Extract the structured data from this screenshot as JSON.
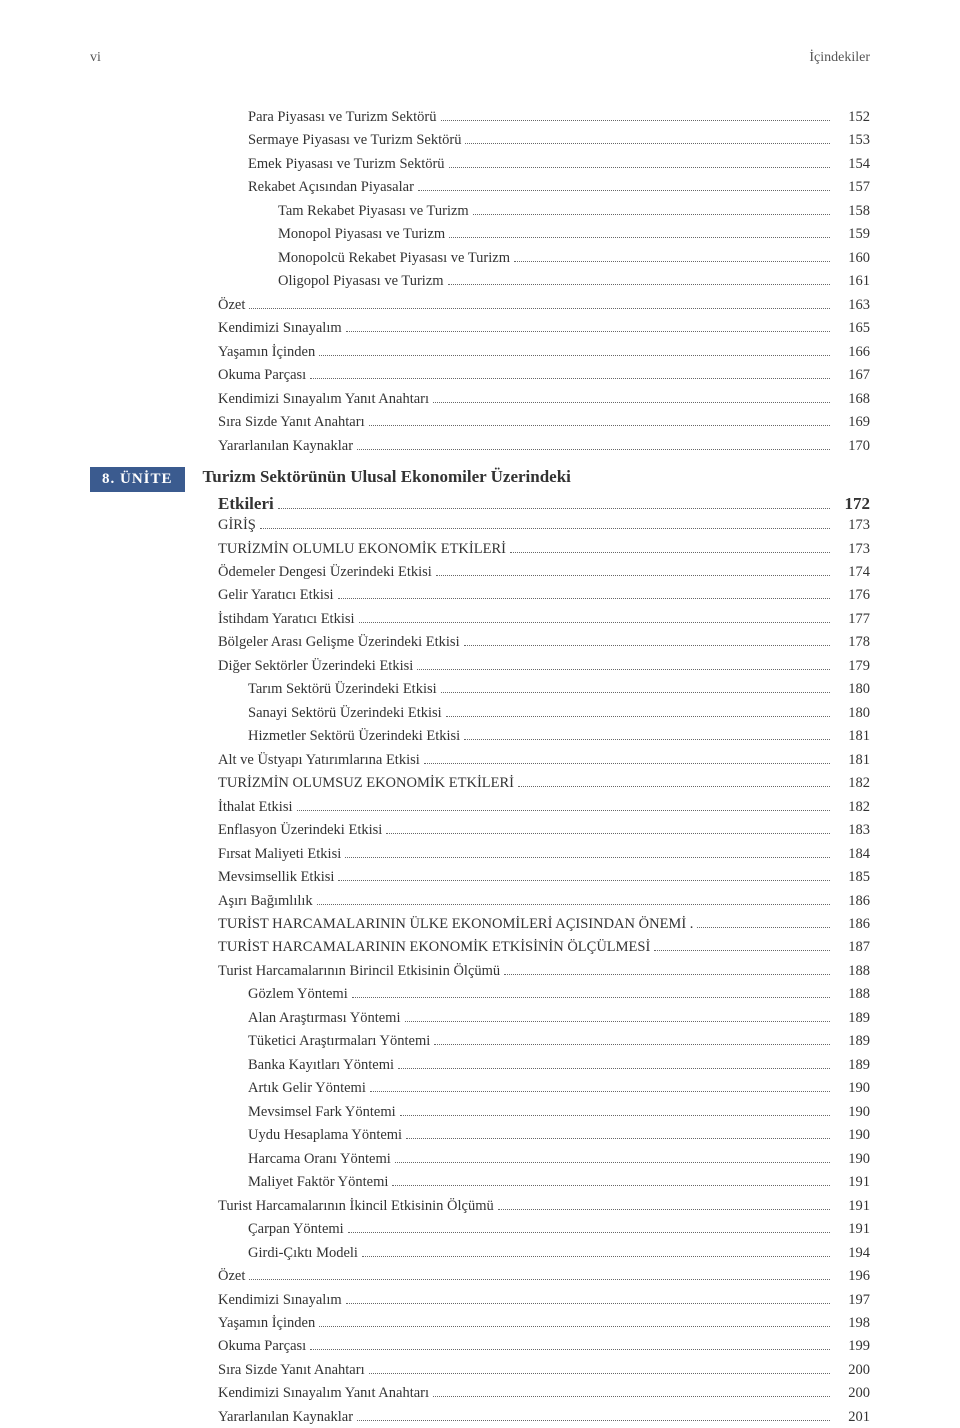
{
  "pageNumber": "vi",
  "headerTitle": "İçindekiler",
  "unit": {
    "badge": "8. ÜNİTE",
    "titleLine1": "Turizm Sektörünün Ulusal Ekonomiler Üzerindeki",
    "titleLine2": "Etkileri",
    "page": "172"
  },
  "preEntries": [
    {
      "label": "Para Piyasası ve Turizm Sektörü",
      "page": "152",
      "level": 1
    },
    {
      "label": "Sermaye Piyasası ve Turizm Sektörü",
      "page": "153",
      "level": 1
    },
    {
      "label": "Emek Piyasası ve Turizm Sektörü",
      "page": "154",
      "level": 1
    },
    {
      "label": "Rekabet Açısından Piyasalar",
      "page": "157",
      "level": 1
    },
    {
      "label": "Tam Rekabet Piyasası ve Turizm",
      "page": "158",
      "level": 2
    },
    {
      "label": "Monopol Piyasası ve Turizm",
      "page": "159",
      "level": 2
    },
    {
      "label": "Monopolcü Rekabet Piyasası ve Turizm",
      "page": "160",
      "level": 2
    },
    {
      "label": "Oligopol Piyasası ve Turizm",
      "page": "161",
      "level": 2
    },
    {
      "label": "Özet",
      "page": "163",
      "level": 0
    },
    {
      "label": "Kendimizi Sınayalım",
      "page": "165",
      "level": 0
    },
    {
      "label": "Yaşamın İçinden",
      "page": "166",
      "level": 0
    },
    {
      "label": "Okuma Parçası",
      "page": "167",
      "level": 0
    },
    {
      "label": "Kendimizi Sınayalım Yanıt Anahtarı",
      "page": "168",
      "level": 0
    },
    {
      "label": "Sıra Sizde Yanıt Anahtarı",
      "page": "169",
      "level": 0
    },
    {
      "label": "Yararlanılan Kaynaklar",
      "page": "170",
      "level": 0
    }
  ],
  "postEntries": [
    {
      "label": "GİRİŞ",
      "page": "173",
      "level": 0
    },
    {
      "label": "TURİZMİN OLUMLU EKONOMİK ETKİLERİ",
      "page": "173",
      "level": 0
    },
    {
      "label": "Ödemeler Dengesi Üzerindeki Etkisi",
      "page": "174",
      "level": 0
    },
    {
      "label": "Gelir Yaratıcı Etkisi",
      "page": "176",
      "level": 0
    },
    {
      "label": "İstihdam Yaratıcı Etkisi",
      "page": "177",
      "level": 0
    },
    {
      "label": "Bölgeler Arası Gelişme Üzerindeki Etkisi",
      "page": "178",
      "level": 0
    },
    {
      "label": "Diğer Sektörler Üzerindeki Etkisi",
      "page": "179",
      "level": 0
    },
    {
      "label": "Tarım Sektörü Üzerindeki Etkisi",
      "page": "180",
      "level": 1
    },
    {
      "label": "Sanayi Sektörü Üzerindeki Etkisi",
      "page": "180",
      "level": 1
    },
    {
      "label": "Hizmetler Sektörü Üzerindeki Etkisi",
      "page": "181",
      "level": 1
    },
    {
      "label": "Alt ve Üstyapı Yatırımlarına Etkisi",
      "page": "181",
      "level": 0
    },
    {
      "label": "TURİZMİN OLUMSUZ EKONOMİK ETKİLERİ",
      "page": "182",
      "level": 0
    },
    {
      "label": "İthalat Etkisi",
      "page": "182",
      "level": 0
    },
    {
      "label": "Enflasyon Üzerindeki Etkisi",
      "page": "183",
      "level": 0
    },
    {
      "label": "Fırsat Maliyeti Etkisi",
      "page": "184",
      "level": 0
    },
    {
      "label": "Mevsimsellik Etkisi",
      "page": "185",
      "level": 0
    },
    {
      "label": "Aşırı Bağımlılık",
      "page": "186",
      "level": 0
    },
    {
      "label": "TURİST HARCAMALARININ ÜLKE EKONOMİLERİ AÇISINDAN ÖNEMİ .",
      "page": "186",
      "level": 0
    },
    {
      "label": "TURİST HARCAMALARININ EKONOMİK ETKİSİNİN ÖLÇÜLMESİ",
      "page": "187",
      "level": 0
    },
    {
      "label": "Turist Harcamalarının Birincil Etkisinin Ölçümü",
      "page": "188",
      "level": 0
    },
    {
      "label": "Gözlem Yöntemi",
      "page": "188",
      "level": 1
    },
    {
      "label": "Alan Araştırması Yöntemi",
      "page": "189",
      "level": 1
    },
    {
      "label": "Tüketici Araştırmaları Yöntemi",
      "page": "189",
      "level": 1
    },
    {
      "label": "Banka Kayıtları Yöntemi",
      "page": "189",
      "level": 1
    },
    {
      "label": "Artık Gelir Yöntemi",
      "page": "190",
      "level": 1
    },
    {
      "label": "Mevsimsel Fark Yöntemi",
      "page": "190",
      "level": 1
    },
    {
      "label": "Uydu Hesaplama Yöntemi",
      "page": "190",
      "level": 1
    },
    {
      "label": "Harcama Oranı Yöntemi",
      "page": "190",
      "level": 1
    },
    {
      "label": "Maliyet Faktör Yöntemi",
      "page": "191",
      "level": 1
    },
    {
      "label": "Turist Harcamalarının İkincil Etkisinin Ölçümü",
      "page": "191",
      "level": 0
    },
    {
      "label": "Çarpan Yöntemi",
      "page": "191",
      "level": 1
    },
    {
      "label": "Girdi-Çıktı Modeli",
      "page": "194",
      "level": 1
    },
    {
      "label": "Özet",
      "page": "196",
      "level": 0
    },
    {
      "label": "Kendimizi Sınayalım",
      "page": "197",
      "level": 0
    },
    {
      "label": "Yaşamın İçinden",
      "page": "198",
      "level": 0
    },
    {
      "label": "Okuma Parçası",
      "page": "199",
      "level": 0
    },
    {
      "label": "Sıra Sizde Yanıt Anahtarı",
      "page": "200",
      "level": 0
    },
    {
      "label": "Kendimizi Sınayalım Yanıt Anahtarı",
      "page": "200",
      "level": 0
    },
    {
      "label": "Yararlanılan Kaynaklar",
      "page": "201",
      "level": 0
    }
  ]
}
